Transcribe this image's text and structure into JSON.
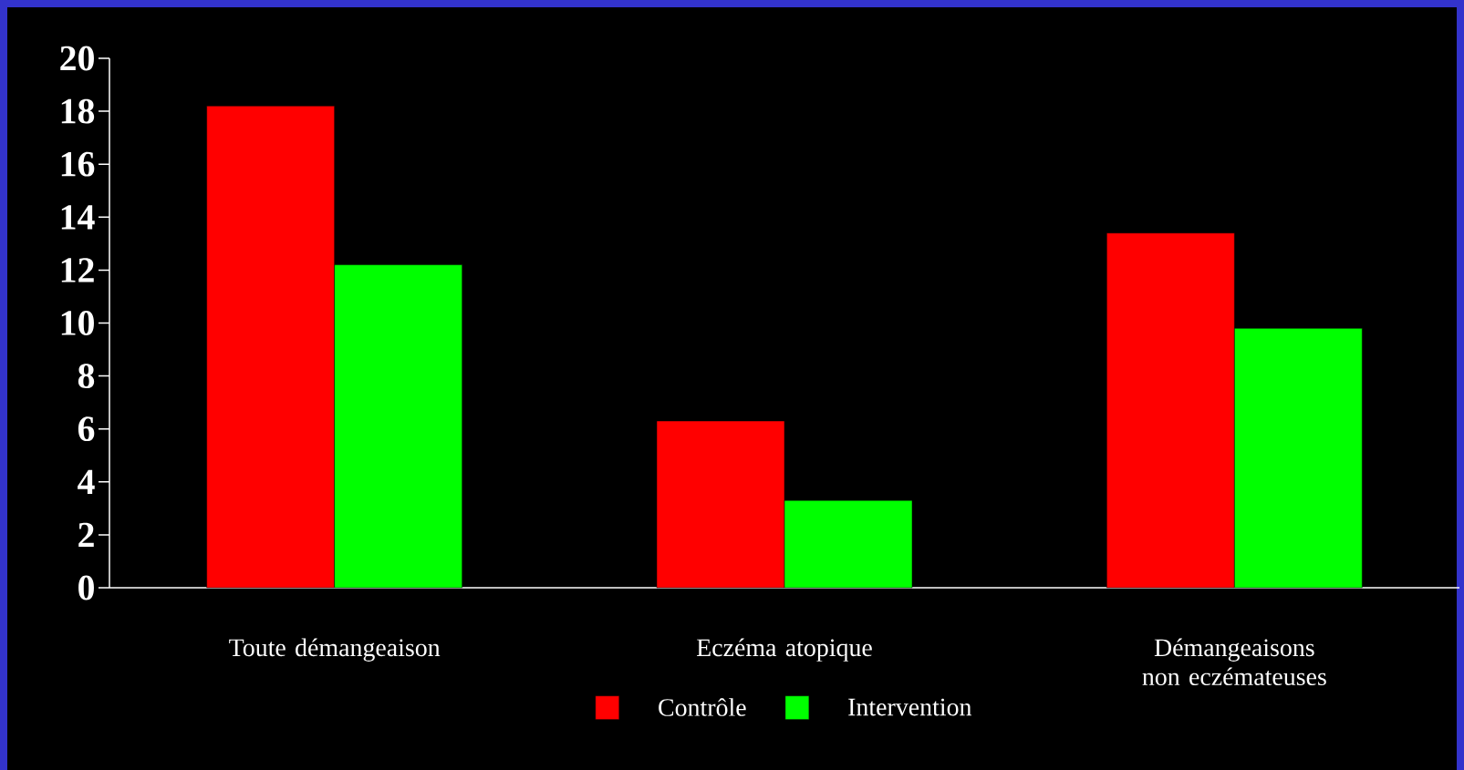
{
  "chart_data": {
    "type": "bar",
    "categories": [
      "Toute démangeaison",
      "Eczéma atopique",
      "Démangeaisons non eczémateuses"
    ],
    "series": [
      {
        "name": "Contrôle",
        "color": "#ff0000",
        "values": [
          18.2,
          6.3,
          13.4
        ]
      },
      {
        "name": "Intervention",
        "color": "#00ff00",
        "values": [
          12.2,
          3.3,
          9.8
        ]
      }
    ],
    "ylim": [
      0,
      20
    ],
    "yticks": [
      0,
      2,
      4,
      6,
      8,
      10,
      12,
      14,
      16,
      18,
      20
    ],
    "legend": "bottom"
  }
}
